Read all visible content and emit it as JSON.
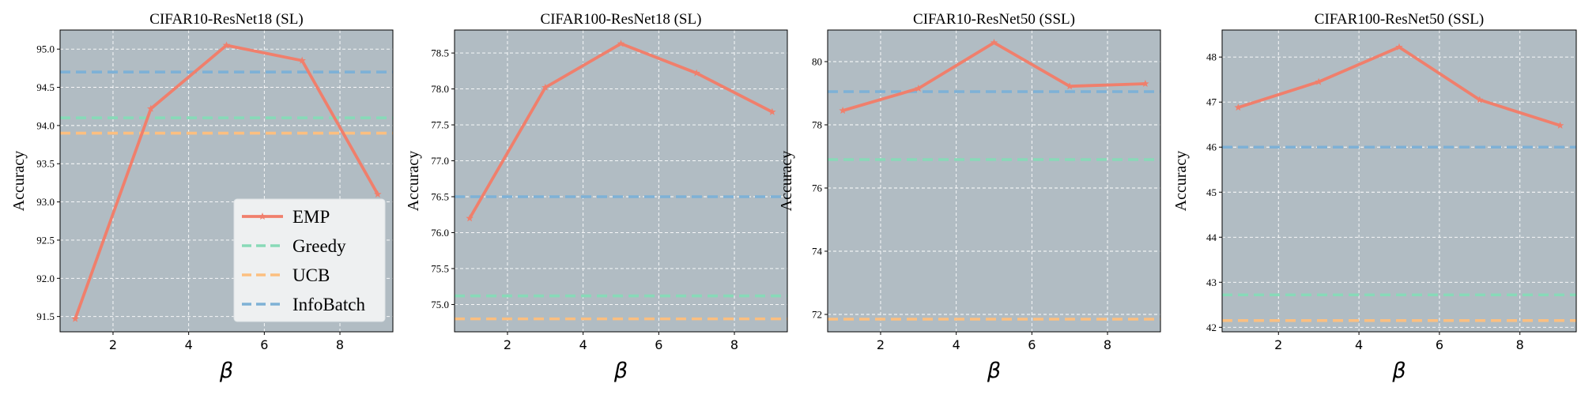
{
  "colors": {
    "background": "#b1bcc3",
    "grid": "#ffffff",
    "EMP": "#f07f6c",
    "Greedy": "#88dab8",
    "UCB": "#fcbf80",
    "InfoBatch": "#7eb1d6"
  },
  "chart_data": [
    {
      "type": "line",
      "title": "CIFAR10-ResNet18 (SL)",
      "xlabel": "β",
      "ylabel": "Accuracy",
      "xlim": [
        0.6,
        9.4
      ],
      "ylim": [
        91.3,
        95.25
      ],
      "xticks": [
        2,
        4,
        6,
        8
      ],
      "yticks": [
        91.5,
        92.0,
        92.5,
        93.0,
        93.5,
        94.0,
        94.5,
        95.0
      ],
      "ytick_labels": [
        "91.5",
        "92.0",
        "92.5",
        "93.0",
        "93.5",
        "94.0",
        "94.5",
        "95.0"
      ],
      "grid": true,
      "legend": "lower-right",
      "series": [
        {
          "name": "EMP",
          "style": "solid",
          "marker": "star",
          "x": [
            1,
            3,
            5,
            7,
            9
          ],
          "values": [
            91.47,
            94.22,
            95.05,
            94.85,
            93.1
          ]
        },
        {
          "name": "Greedy",
          "style": "dashed",
          "y": 94.1
        },
        {
          "name": "UCB",
          "style": "dashed",
          "y": 93.9
        },
        {
          "name": "InfoBatch",
          "style": "dashed",
          "y": 94.7
        }
      ]
    },
    {
      "type": "line",
      "title": "CIFAR100-ResNet18 (SL)",
      "xlabel": "β",
      "ylabel": "Accuracy",
      "xlim": [
        0.6,
        9.4
      ],
      "ylim": [
        74.62,
        78.82
      ],
      "xticks": [
        2,
        4,
        6,
        8
      ],
      "yticks": [
        75.0,
        75.5,
        76.0,
        76.5,
        77.0,
        77.5,
        78.0,
        78.5
      ],
      "ytick_labels": [
        "75.0",
        "75.5",
        "76.0",
        "76.5",
        "77.0",
        "77.5",
        "78.0",
        "78.5"
      ],
      "grid": true,
      "legend": "none",
      "series": [
        {
          "name": "EMP",
          "style": "solid",
          "marker": "star",
          "x": [
            1,
            3,
            5,
            7,
            9
          ],
          "values": [
            76.2,
            78.02,
            78.63,
            78.22,
            77.68
          ]
        },
        {
          "name": "Greedy",
          "style": "dashed",
          "y": 75.12
        },
        {
          "name": "UCB",
          "style": "dashed",
          "y": 74.8
        },
        {
          "name": "InfoBatch",
          "style": "dashed",
          "y": 76.5
        }
      ]
    },
    {
      "type": "line",
      "title": "CIFAR10-ResNet50 (SSL)",
      "xlabel": "β",
      "ylabel": "Accuracy",
      "xlim": [
        0.6,
        9.4
      ],
      "ylim": [
        71.45,
        81.0
      ],
      "xticks": [
        2,
        4,
        6,
        8
      ],
      "yticks": [
        72,
        74,
        76,
        78,
        80
      ],
      "ytick_labels": [
        "72",
        "74",
        "76",
        "78",
        "80"
      ],
      "grid": true,
      "legend": "none",
      "series": [
        {
          "name": "EMP",
          "style": "solid",
          "marker": "star",
          "x": [
            1,
            3,
            5,
            7,
            9
          ],
          "values": [
            78.45,
            79.15,
            80.6,
            79.22,
            79.3
          ]
        },
        {
          "name": "Greedy",
          "style": "dashed",
          "y": 76.9
        },
        {
          "name": "UCB",
          "style": "dashed",
          "y": 71.85
        },
        {
          "name": "InfoBatch",
          "style": "dashed",
          "y": 79.05
        }
      ]
    },
    {
      "type": "line",
      "title": "CIFAR100-ResNet50 (SSL)",
      "xlabel": "β",
      "ylabel": "Accuracy",
      "xlim": [
        0.6,
        9.4
      ],
      "ylim": [
        41.9,
        48.6
      ],
      "xticks": [
        2,
        4,
        6,
        8
      ],
      "yticks": [
        42,
        43,
        44,
        45,
        46,
        47,
        48
      ],
      "ytick_labels": [
        "42",
        "43",
        "44",
        "45",
        "46",
        "47",
        "48"
      ],
      "grid": true,
      "legend": "none",
      "series": [
        {
          "name": "EMP",
          "style": "solid",
          "marker": "star",
          "x": [
            1,
            3,
            5,
            7,
            9
          ],
          "values": [
            46.88,
            47.45,
            48.22,
            47.05,
            46.48
          ]
        },
        {
          "name": "Greedy",
          "style": "dashed",
          "y": 42.72
        },
        {
          "name": "UCB",
          "style": "dashed",
          "y": 42.15
        },
        {
          "name": "InfoBatch",
          "style": "dashed",
          "y": 46.0
        }
      ]
    }
  ]
}
